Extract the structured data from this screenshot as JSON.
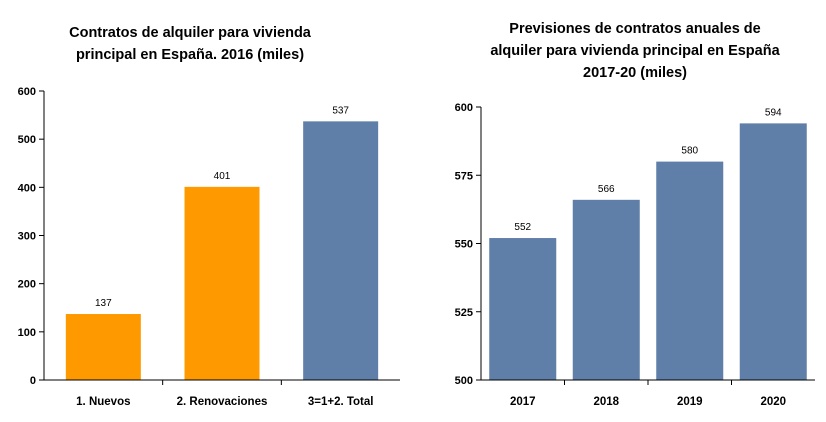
{
  "chart_data": [
    {
      "type": "bar",
      "title_lines": [
        "Contratos de alquiler para vivienda",
        "principal en España. 2016 (miles)"
      ],
      "categories": [
        "1. Nuevos",
        "2. Renovaciones",
        "3=1+2. Total"
      ],
      "values": [
        137,
        401,
        537
      ],
      "bar_colors": [
        "#FF9900",
        "#FF9900",
        "#5F7FA8"
      ],
      "ylim": [
        0,
        600
      ],
      "yticks": [
        0,
        100,
        200,
        300,
        400,
        500,
        600
      ],
      "grid": false,
      "legend": "none"
    },
    {
      "type": "bar",
      "title_lines": [
        "Previsiones de contratos anuales de",
        "alquiler para vivienda principal en España",
        "2017-20 (miles)"
      ],
      "categories": [
        "2017",
        "2018",
        "2019",
        "2020"
      ],
      "values": [
        552,
        566,
        580,
        594
      ],
      "bar_colors": [
        "#5F7FA8",
        "#5F7FA8",
        "#5F7FA8",
        "#5F7FA8"
      ],
      "ylim": [
        500,
        600
      ],
      "yticks": [
        500,
        525,
        550,
        575,
        600
      ],
      "grid": false,
      "legend": "none"
    }
  ]
}
